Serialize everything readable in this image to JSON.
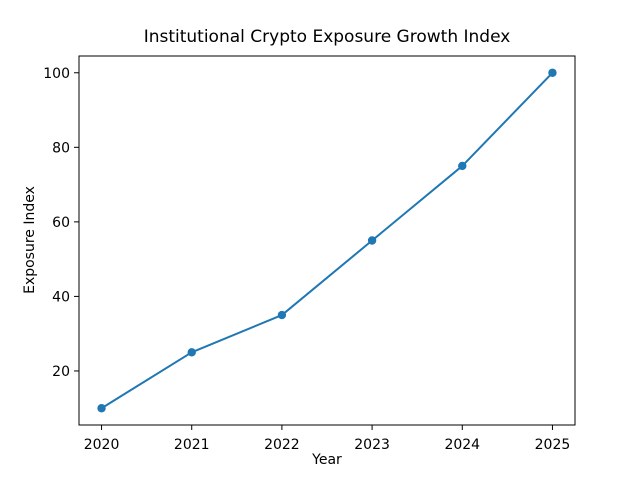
{
  "figure": {
    "background_color": "#ffffff",
    "text_color": "#000000"
  },
  "chart_data": {
    "type": "line",
    "title": "Institutional Crypto Exposure Growth Index",
    "xlabel": "Year",
    "ylabel": "Exposure Index",
    "x": [
      2020,
      2021,
      2022,
      2023,
      2024,
      2025
    ],
    "series": [
      {
        "name": "Exposure Index",
        "values": [
          10,
          25,
          35,
          55,
          75,
          100
        ],
        "color": "#1f77b4",
        "marker": "circle"
      }
    ],
    "xticks": [
      "2020",
      "2021",
      "2022",
      "2023",
      "2024",
      "2025"
    ],
    "xtick_values": [
      2020,
      2021,
      2022,
      2023,
      2024,
      2025
    ],
    "yticks": [
      "20",
      "40",
      "60",
      "80",
      "100"
    ],
    "ytick_values": [
      20,
      40,
      60,
      80,
      100
    ],
    "xlim": [
      2019.75,
      2025.25
    ],
    "ylim": [
      5.5,
      104.5
    ],
    "grid": false,
    "legend": "none"
  }
}
